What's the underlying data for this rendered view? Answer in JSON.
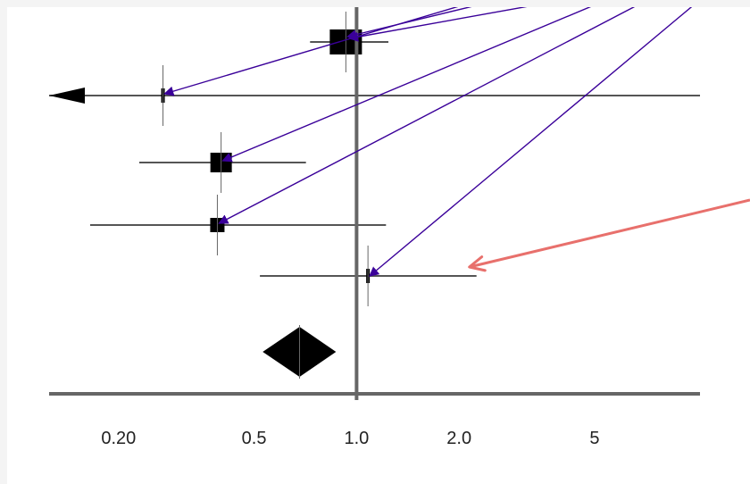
{
  "chart_data": {
    "type": "forest",
    "title": "",
    "xlabel": "",
    "ylabel": "",
    "x_scale": "log",
    "xlim": [
      0.125,
      10.2
    ],
    "reference_line": 1.0,
    "ticks": [
      {
        "value": 0.2,
        "label": "0.20"
      },
      {
        "value": 0.5,
        "label": "0.5"
      },
      {
        "value": 1.0,
        "label": "1.0"
      },
      {
        "value": 2.0,
        "label": "2.0"
      },
      {
        "value": 5.0,
        "label": "5"
      }
    ],
    "studies": [
      {
        "estimate": 0.93,
        "lower": 0.73,
        "upper": 1.24,
        "weight": "large",
        "lower_truncated": false
      },
      {
        "estimate": 0.27,
        "lower": 0.125,
        "upper": 10.2,
        "weight": "tiny",
        "lower_truncated": true
      },
      {
        "estimate": 0.4,
        "lower": 0.23,
        "upper": 0.71,
        "weight": "medium",
        "lower_truncated": false
      },
      {
        "estimate": 0.39,
        "lower": 0.165,
        "upper": 1.22,
        "weight": "small",
        "lower_truncated": false
      },
      {
        "estimate": 1.08,
        "lower": 0.52,
        "upper": 2.25,
        "weight": "tiny",
        "lower_truncated": false
      }
    ],
    "pooled": {
      "estimate": 0.68,
      "lower": 0.53,
      "upper": 0.87
    },
    "colors": {
      "annotation_arrow": "#3a0099",
      "highlight_arrow": "#e8706c",
      "axis": "#666666",
      "marker": "#000000"
    }
  }
}
